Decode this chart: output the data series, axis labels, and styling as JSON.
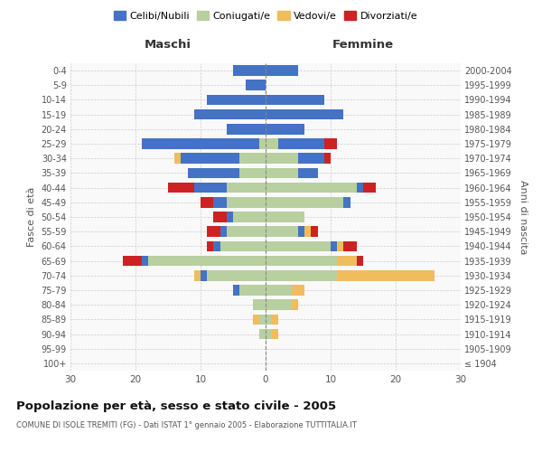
{
  "age_groups": [
    "100+",
    "95-99",
    "90-94",
    "85-89",
    "80-84",
    "75-79",
    "70-74",
    "65-69",
    "60-64",
    "55-59",
    "50-54",
    "45-49",
    "40-44",
    "35-39",
    "30-34",
    "25-29",
    "20-24",
    "15-19",
    "10-14",
    "5-9",
    "0-4"
  ],
  "birth_years": [
    "≤ 1904",
    "1905-1909",
    "1910-1914",
    "1915-1919",
    "1920-1924",
    "1925-1929",
    "1930-1934",
    "1935-1939",
    "1940-1944",
    "1945-1949",
    "1950-1954",
    "1955-1959",
    "1960-1964",
    "1965-1969",
    "1970-1974",
    "1975-1979",
    "1980-1984",
    "1985-1989",
    "1990-1994",
    "1995-1999",
    "2000-2004"
  ],
  "colors": {
    "celibe": "#4472c4",
    "coniugato": "#b8cfa0",
    "vedovo": "#f0bc5e",
    "divorziato": "#cc2222"
  },
  "males": {
    "celibe": [
      0,
      0,
      0,
      0,
      0,
      1,
      1,
      1,
      1,
      1,
      1,
      2,
      5,
      8,
      9,
      18,
      6,
      11,
      9,
      3,
      5
    ],
    "coniugato": [
      0,
      0,
      1,
      1,
      2,
      4,
      9,
      18,
      7,
      6,
      5,
      6,
      6,
      4,
      4,
      1,
      0,
      0,
      0,
      0,
      0
    ],
    "vedovo": [
      0,
      0,
      0,
      1,
      0,
      0,
      1,
      0,
      0,
      0,
      0,
      0,
      0,
      0,
      1,
      0,
      0,
      0,
      0,
      0,
      0
    ],
    "divorziato": [
      0,
      0,
      0,
      0,
      0,
      0,
      0,
      3,
      1,
      2,
      2,
      2,
      4,
      0,
      0,
      0,
      0,
      0,
      0,
      0,
      0
    ]
  },
  "females": {
    "nubile": [
      0,
      0,
      0,
      0,
      0,
      0,
      0,
      0,
      1,
      1,
      0,
      1,
      1,
      3,
      4,
      7,
      6,
      12,
      9,
      0,
      5
    ],
    "coniugata": [
      0,
      0,
      1,
      1,
      4,
      4,
      11,
      11,
      10,
      5,
      6,
      12,
      14,
      5,
      5,
      2,
      0,
      0,
      0,
      0,
      0
    ],
    "vedova": [
      0,
      0,
      1,
      1,
      1,
      2,
      15,
      3,
      1,
      1,
      0,
      0,
      0,
      0,
      0,
      0,
      0,
      0,
      0,
      0,
      0
    ],
    "divorziata": [
      0,
      0,
      0,
      0,
      0,
      0,
      0,
      1,
      2,
      1,
      0,
      0,
      2,
      0,
      1,
      2,
      0,
      0,
      0,
      0,
      0
    ]
  },
  "xlim": 30,
  "title": "Popolazione per età, sesso e stato civile - 2005",
  "subtitle": "COMUNE DI ISOLE TREMITI (FG) - Dati ISTAT 1° gennaio 2005 - Elaborazione TUTTITALIA.IT",
  "ylabel_left": "Fasce di età",
  "ylabel_right": "Anni di nascita",
  "xlabel_left": "Maschi",
  "xlabel_right": "Femmine",
  "legend_labels": [
    "Celibi/Nubili",
    "Coniugati/e",
    "Vedovi/e",
    "Divorziati/e"
  ],
  "legend_colors": [
    "#4472c4",
    "#b8cfa0",
    "#f0bc5e",
    "#cc2222"
  ]
}
